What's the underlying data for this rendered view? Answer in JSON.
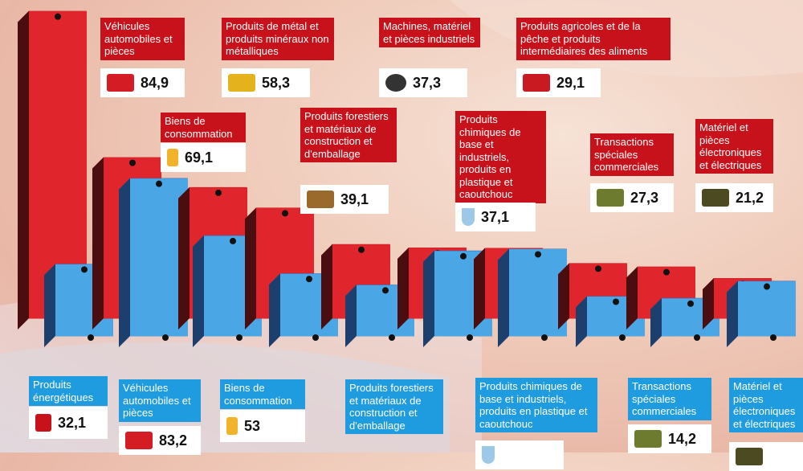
{
  "chart_data": {
    "type": "bar",
    "title": "",
    "categories": [
      "Produits énergétiques",
      "Véhicules automobiles et pièces",
      "Biens de consommation",
      "Produits de métal et produits minéraux non métalliques",
      "Produits forestiers et matériaux de construction et d'emballage",
      "Machines, matériel et pièces industriels",
      "Produits chimiques de base et industriels, produits en plastique et caoutchouc",
      "Produits agricoles et de la pêche et produits intermédiaires des aliments",
      "Transactions spéciales commerciales",
      "Matériel et pièces électroniques et électriques"
    ],
    "series": [
      {
        "name": "red",
        "color": "#c8121b",
        "values": [
          null,
          84.9,
          69.1,
          58.3,
          39.1,
          37.3,
          37.1,
          29.1,
          27.3,
          21.2
        ],
        "estimated_levels": [
          162,
          84.9,
          69.1,
          58.3,
          39.1,
          37.3,
          37.1,
          29.1,
          27.3,
          21.2
        ]
      },
      {
        "name": "blue",
        "color": "#1f9be0",
        "values": [
          32.1,
          83.2,
          53,
          null,
          null,
          null,
          null,
          null,
          14.2,
          null
        ],
        "estimated_levels": [
          38,
          83.2,
          53,
          33,
          27,
          45,
          46,
          21,
          20,
          29
        ]
      }
    ]
  },
  "red_labels": [
    {
      "text": "Véhicules automobiles et pièces",
      "value": "84,9",
      "icon": "car"
    },
    {
      "text": "Biens de consommation",
      "value": "69,1",
      "icon": "bottle"
    },
    {
      "text": "Produits de métal et produits minéraux non métalliques",
      "value": "58,3",
      "icon": "gold"
    },
    {
      "text": "Produits forestiers et matériaux de construction et d'emballage",
      "value": "39,1",
      "icon": "wood"
    },
    {
      "text": "Machines, matériel et pièces industriels",
      "value": "37,3",
      "icon": "gear"
    },
    {
      "text": "Produits chimiques de base et industriels, produits en plastique et caoutchouc",
      "value": "37,1",
      "icon": "flask"
    },
    {
      "text": "Produits agricoles et de la pêche et produits intermédiaires des aliments",
      "value": "29,1",
      "icon": "tractor"
    },
    {
      "text": "Transactions spéciales commerciales",
      "value": "27,3",
      "icon": "money"
    },
    {
      "text": "Matériel et pièces électroniques et électriques",
      "value": "21,2",
      "icon": "chip"
    }
  ],
  "blue_labels": [
    {
      "text": "Produits énergétiques",
      "value": "32,1",
      "icon": "can"
    },
    {
      "text": "Véhicules automobiles et pièces",
      "value": "83,2",
      "icon": "car"
    },
    {
      "text": "Biens de consommation",
      "value": "53",
      "icon": "bottle"
    },
    {
      "text": "Produits forestiers et matériaux de construction et d'emballage"
    },
    {
      "text": "Produits chimiques de base et industriels, produits en plastique et caoutchouc",
      "icon": "flask"
    },
    {
      "text": "Transactions spéciales commerciales",
      "value": "14,2",
      "icon": "money"
    },
    {
      "text": "Matériel et pièces électroniques et électriques",
      "icon": "chip"
    }
  ]
}
